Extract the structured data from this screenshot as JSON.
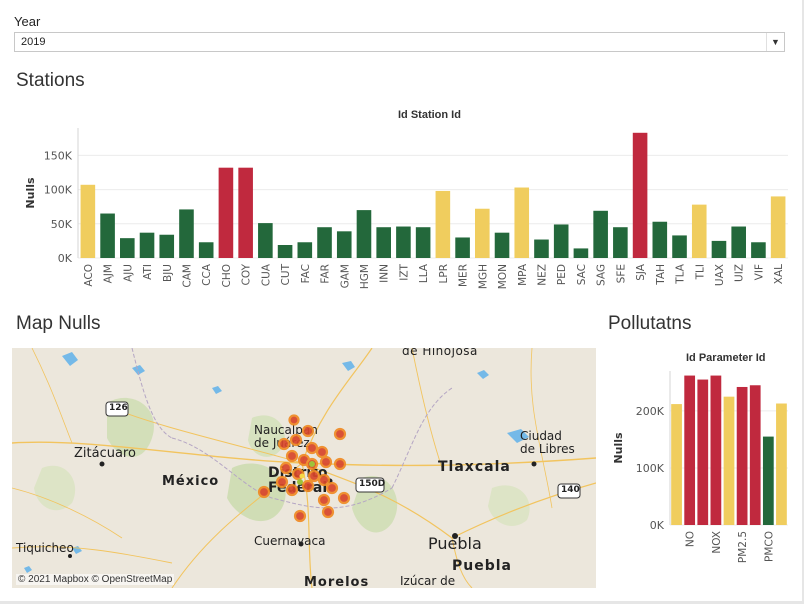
{
  "filter": {
    "label": "Year",
    "selected": "2019"
  },
  "stations": {
    "section_title": "Stations",
    "chart_data": {
      "type": "bar",
      "title": "Id Station Id",
      "xlabel": "",
      "ylabel": "Nulls",
      "ylim": [
        0,
        190000
      ],
      "yticks": [
        0,
        50000,
        100000,
        150000
      ],
      "ytick_labels": [
        "0K",
        "50K",
        "100K",
        "150K"
      ],
      "categories": [
        "ACO",
        "AJM",
        "AJU",
        "ATI",
        "BJU",
        "CAM",
        "CCA",
        "CHO",
        "COY",
        "CUA",
        "CUT",
        "FAC",
        "FAR",
        "GAM",
        "HGM",
        "INN",
        "IZT",
        "LLA",
        "LPR",
        "MER",
        "MGH",
        "MON",
        "MPA",
        "NEZ",
        "PED",
        "SAC",
        "SAG",
        "SFE",
        "SJA",
        "TAH",
        "TLA",
        "TLI",
        "UAX",
        "UIZ",
        "VIF",
        "XAL"
      ],
      "values": [
        107000,
        65000,
        29000,
        37000,
        34000,
        71000,
        23000,
        132000,
        132000,
        51000,
        19000,
        23000,
        45000,
        39000,
        70000,
        45000,
        46000,
        45000,
        98000,
        30000,
        72000,
        37000,
        103000,
        27000,
        49000,
        14000,
        69000,
        45000,
        183000,
        53000,
        33000,
        78000,
        25000,
        46000,
        23000,
        90000
      ],
      "colors": [
        "#f0cd5e",
        "#23683b",
        "#23683b",
        "#23683b",
        "#23683b",
        "#23683b",
        "#23683b",
        "#c0293e",
        "#c0293e",
        "#23683b",
        "#23683b",
        "#23683b",
        "#23683b",
        "#23683b",
        "#23683b",
        "#23683b",
        "#23683b",
        "#23683b",
        "#f0cd5e",
        "#23683b",
        "#f0cd5e",
        "#23683b",
        "#f0cd5e",
        "#23683b",
        "#23683b",
        "#23683b",
        "#23683b",
        "#23683b",
        "#c0293e",
        "#23683b",
        "#23683b",
        "#f0cd5e",
        "#23683b",
        "#23683b",
        "#23683b",
        "#f0cd5e"
      ]
    }
  },
  "map": {
    "section_title": "Map Nulls",
    "attribution": "© 2021 Mapbox © OpenStreetMap",
    "labels": {
      "hinojosa": "de Hinojosa",
      "zitacuaro": "Zitácuaro",
      "naucalpan": "Naucalpan\nde Juárez",
      "distrito": "Distrito\nFederal",
      "mexico": "México",
      "tlaxcala": "Tlaxcala",
      "ciudad_libres": "Ciudad\nde Libres",
      "cuernavaca": "Cuernavaca",
      "puebla_city": "Puebla",
      "puebla_state": "Puebla",
      "tiquicheo": "Tiquicheo",
      "morelos": "Morelos",
      "izucar": "Izúcar de",
      "route_126": "126",
      "route_150d": "150D",
      "route_140": "140"
    }
  },
  "pollutants": {
    "section_title": "Pollutatns",
    "chart_data": {
      "type": "bar",
      "title": "Id Parameter Id",
      "xlabel": "",
      "ylabel": "Nulls",
      "ylim": [
        0,
        270000
      ],
      "yticks": [
        0,
        100000,
        200000
      ],
      "ytick_labels": [
        "0K",
        "100K",
        "200K"
      ],
      "categories": [
        "",
        "NO",
        "",
        "NOX",
        "",
        "PM2.5",
        "",
        "PMCO",
        ""
      ],
      "values": [
        212000,
        262000,
        255000,
        262000,
        225000,
        242000,
        245000,
        155000,
        213000
      ],
      "colors": [
        "#f0cd5e",
        "#c0293e",
        "#c0293e",
        "#c0293e",
        "#f0cd5e",
        "#c0293e",
        "#c0293e",
        "#23683b",
        "#f0cd5e"
      ]
    }
  }
}
